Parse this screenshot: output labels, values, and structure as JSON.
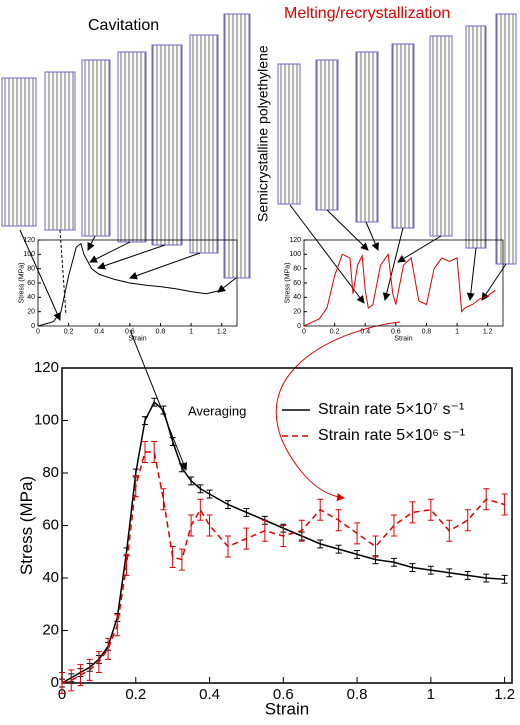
{
  "annotations": {
    "cavitation": "Cavitation",
    "melting": "Melting/recrystallization",
    "material": "Semicrystalline polyethylene",
    "averaging": "Averaging"
  },
  "chart_data": [
    {
      "type": "line",
      "x_label": "Strain",
      "y_label": "Stress (MPa)",
      "x": [
        0,
        0.025,
        0.05,
        0.075,
        0.1,
        0.125,
        0.15,
        0.175,
        0.2,
        0.225,
        0.25,
        0.275,
        0.3,
        0.325,
        0.35,
        0.375,
        0.4,
        0.45,
        0.5,
        0.55,
        0.6,
        0.65,
        0.7,
        0.75,
        0.8,
        0.85,
        0.9,
        0.95,
        1.0,
        1.05,
        1.1,
        1.15,
        1.2
      ],
      "series": [
        {
          "name": "Strain rate 5×10⁷ s⁻¹",
          "color": "#000000",
          "dash": false,
          "error": 1.5,
          "values": [
            0,
            2,
            4,
            6,
            9,
            14,
            25,
            50,
            80,
            100,
            107,
            104,
            92,
            82,
            77,
            74,
            72,
            68,
            65,
            62,
            59,
            56,
            53,
            51,
            49,
            47,
            46,
            44,
            43,
            42,
            41,
            40,
            39.5
          ]
        },
        {
          "name": "Strain rate 5×10⁶ s⁻¹",
          "color": "#e00000",
          "dash": true,
          "error": 4,
          "values": [
            0,
            1,
            3,
            5,
            8,
            13,
            22,
            45,
            75,
            88,
            88,
            70,
            48,
            47,
            60,
            66,
            60,
            52,
            55,
            58,
            56,
            58,
            66,
            62,
            57,
            52,
            60,
            65,
            66,
            58,
            62,
            70,
            68
          ]
        }
      ],
      "xlim": [
        0,
        1.22
      ],
      "ylim": [
        0,
        120
      ],
      "xticks": [
        0,
        0.2,
        0.4,
        0.6,
        0.8,
        1,
        1.2
      ],
      "yticks": [
        0,
        20,
        40,
        60,
        80,
        100,
        120
      ]
    },
    {
      "type": "line",
      "x_label": "Strain",
      "y_label": "Stress (MPa)",
      "x": [
        0,
        0.05,
        0.1,
        0.15,
        0.2,
        0.25,
        0.28,
        0.3,
        0.35,
        0.4,
        0.5,
        0.6,
        0.7,
        0.8,
        0.9,
        1.0,
        1.1,
        1.2
      ],
      "series": [
        {
          "name": null,
          "color": "#000000",
          "dash": false,
          "error": null,
          "values": [
            0,
            3,
            6,
            20,
            70,
            110,
            115,
            100,
            80,
            72,
            65,
            60,
            57,
            55,
            52,
            48,
            45,
            50
          ]
        }
      ],
      "xlim": [
        0,
        1.3
      ],
      "ylim": [
        0,
        120
      ],
      "xticks": [
        0,
        0.2,
        0.4,
        0.6,
        0.8,
        1,
        1.2
      ],
      "yticks": [
        0,
        20,
        40,
        60,
        80,
        100,
        120
      ]
    },
    {
      "type": "line",
      "x_label": "Strain",
      "y_label": "Stress (MPa)",
      "x": [
        0,
        0.05,
        0.1,
        0.15,
        0.2,
        0.25,
        0.3,
        0.32,
        0.35,
        0.38,
        0.4,
        0.42,
        0.45,
        0.5,
        0.55,
        0.58,
        0.6,
        0.65,
        0.7,
        0.75,
        0.8,
        0.85,
        0.9,
        0.95,
        1.0,
        1.03,
        1.05,
        1.1,
        1.15,
        1.2,
        1.25
      ],
      "series": [
        {
          "name": null,
          "color": "#e00000",
          "dash": false,
          "error": null,
          "values": [
            0,
            5,
            10,
            25,
            70,
            100,
            95,
            45,
            85,
            98,
            50,
            25,
            30,
            85,
            100,
            45,
            30,
            85,
            95,
            35,
            30,
            80,
            95,
            90,
            95,
            20,
            25,
            30,
            38,
            42,
            50
          ]
        }
      ],
      "xlim": [
        0,
        1.3
      ],
      "ylim": [
        0,
        120
      ],
      "xticks": [
        0,
        0.2,
        0.4,
        0.6,
        0.8,
        1,
        1.2
      ],
      "yticks": [
        0,
        20,
        40,
        60,
        80,
        100,
        120
      ]
    }
  ]
}
